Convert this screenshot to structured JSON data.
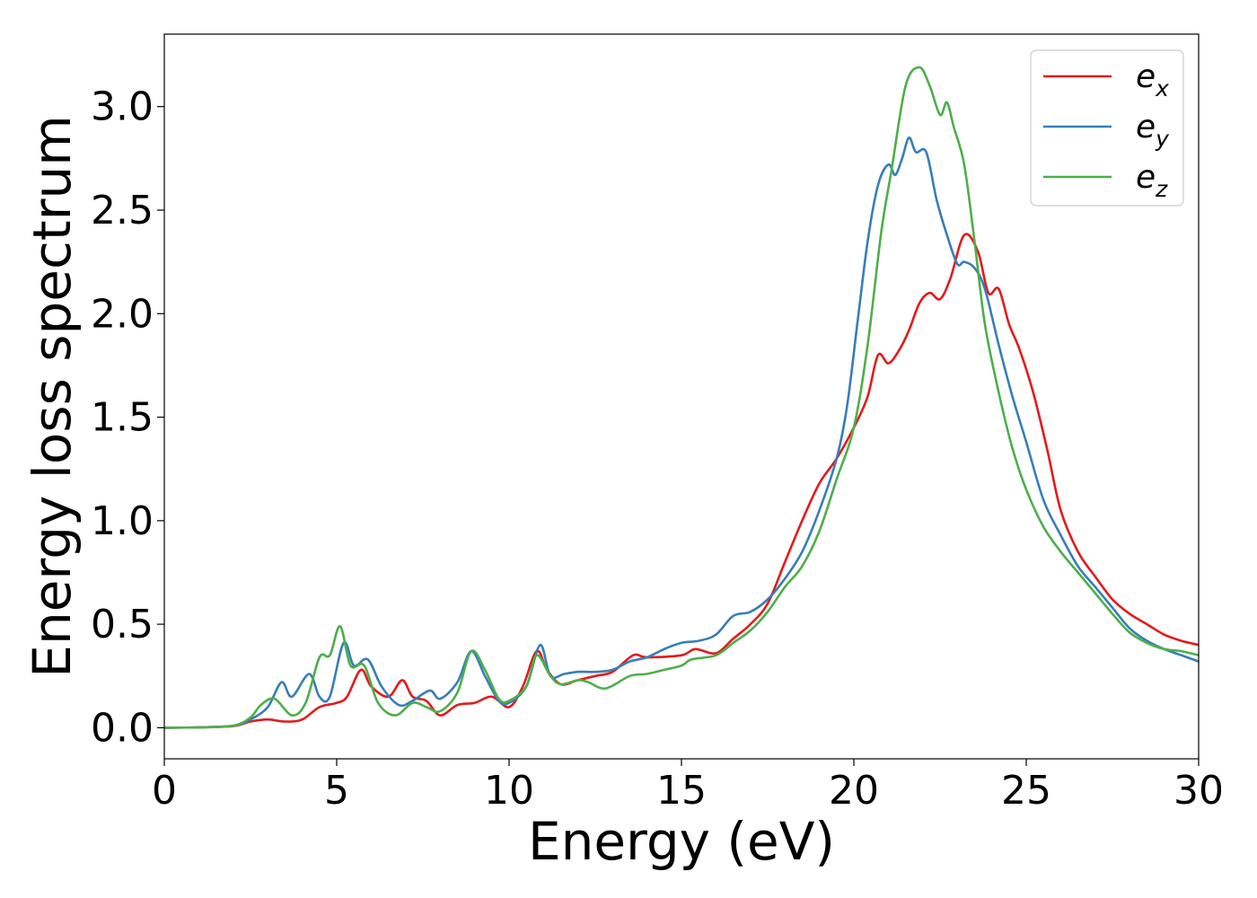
{
  "chart_data": {
    "type": "line",
    "title": "",
    "xlabel": "Energy (eV)",
    "ylabel": "Energy loss spectrum",
    "xlim": [
      0,
      30
    ],
    "ylim": [
      -0.15,
      3.35
    ],
    "xticks": [
      0,
      5,
      10,
      15,
      20,
      25,
      30
    ],
    "xtick_labels": [
      "0",
      "5",
      "10",
      "15",
      "20",
      "25",
      "30"
    ],
    "yticks": [
      0.0,
      0.5,
      1.0,
      1.5,
      2.0,
      2.5,
      3.0
    ],
    "ytick_labels": [
      "0.0",
      "0.5",
      "1.0",
      "1.5",
      "2.0",
      "2.5",
      "3.0"
    ],
    "grid": false,
    "legend_position": "top-right",
    "series": [
      {
        "name": "e",
        "subscript": "x",
        "color": "#e41a1c",
        "points": [
          [
            0,
            0
          ],
          [
            1,
            0.002
          ],
          [
            2,
            0.008
          ],
          [
            2.5,
            0.03
          ],
          [
            3,
            0.04
          ],
          [
            3.5,
            0.03
          ],
          [
            4,
            0.04
          ],
          [
            4.5,
            0.1
          ],
          [
            5,
            0.12
          ],
          [
            5.3,
            0.15
          ],
          [
            5.7,
            0.28
          ],
          [
            6,
            0.2
          ],
          [
            6.5,
            0.15
          ],
          [
            6.9,
            0.23
          ],
          [
            7.2,
            0.15
          ],
          [
            7.6,
            0.13
          ],
          [
            8,
            0.06
          ],
          [
            8.5,
            0.11
          ],
          [
            9,
            0.12
          ],
          [
            9.5,
            0.15
          ],
          [
            10,
            0.1
          ],
          [
            10.4,
            0.2
          ],
          [
            10.8,
            0.37
          ],
          [
            11.1,
            0.28
          ],
          [
            11.5,
            0.21
          ],
          [
            12,
            0.23
          ],
          [
            12.5,
            0.25
          ],
          [
            13,
            0.27
          ],
          [
            13.6,
            0.35
          ],
          [
            14,
            0.34
          ],
          [
            15,
            0.35
          ],
          [
            15.4,
            0.38
          ],
          [
            16,
            0.36
          ],
          [
            16.5,
            0.43
          ],
          [
            17,
            0.5
          ],
          [
            17.5,
            0.6
          ],
          [
            18,
            0.8
          ],
          [
            18.5,
            1.0
          ],
          [
            19,
            1.18
          ],
          [
            19.5,
            1.3
          ],
          [
            20,
            1.45
          ],
          [
            20.4,
            1.6
          ],
          [
            20.7,
            1.8
          ],
          [
            21,
            1.76
          ],
          [
            21.3,
            1.82
          ],
          [
            21.6,
            1.92
          ],
          [
            21.9,
            2.05
          ],
          [
            22.2,
            2.1
          ],
          [
            22.5,
            2.07
          ],
          [
            22.8,
            2.17
          ],
          [
            23.2,
            2.38
          ],
          [
            23.6,
            2.3
          ],
          [
            23.9,
            2.1
          ],
          [
            24.2,
            2.12
          ],
          [
            24.5,
            1.95
          ],
          [
            24.8,
            1.83
          ],
          [
            25.2,
            1.62
          ],
          [
            25.6,
            1.35
          ],
          [
            26,
            1.05
          ],
          [
            26.5,
            0.85
          ],
          [
            27,
            0.73
          ],
          [
            27.5,
            0.62
          ],
          [
            28,
            0.55
          ],
          [
            28.5,
            0.5
          ],
          [
            29,
            0.45
          ],
          [
            29.5,
            0.42
          ],
          [
            30,
            0.4
          ]
        ]
      },
      {
        "name": "e",
        "subscript": "y",
        "color": "#377eb8",
        "points": [
          [
            0,
            0
          ],
          [
            1,
            0.002
          ],
          [
            2,
            0.01
          ],
          [
            2.5,
            0.04
          ],
          [
            3,
            0.1
          ],
          [
            3.4,
            0.22
          ],
          [
            3.7,
            0.15
          ],
          [
            4.2,
            0.26
          ],
          [
            4.5,
            0.15
          ],
          [
            4.8,
            0.15
          ],
          [
            5.2,
            0.41
          ],
          [
            5.5,
            0.3
          ],
          [
            5.9,
            0.33
          ],
          [
            6.3,
            0.2
          ],
          [
            6.8,
            0.11
          ],
          [
            7.2,
            0.13
          ],
          [
            7.7,
            0.18
          ],
          [
            8,
            0.14
          ],
          [
            8.5,
            0.22
          ],
          [
            8.9,
            0.37
          ],
          [
            9.3,
            0.25
          ],
          [
            9.7,
            0.13
          ],
          [
            10,
            0.12
          ],
          [
            10.5,
            0.2
          ],
          [
            10.9,
            0.4
          ],
          [
            11.2,
            0.25
          ],
          [
            11.6,
            0.26
          ],
          [
            12,
            0.27
          ],
          [
            12.5,
            0.27
          ],
          [
            13,
            0.28
          ],
          [
            13.5,
            0.32
          ],
          [
            14,
            0.34
          ],
          [
            14.5,
            0.38
          ],
          [
            15,
            0.41
          ],
          [
            15.5,
            0.42
          ],
          [
            16,
            0.45
          ],
          [
            16.5,
            0.54
          ],
          [
            17,
            0.56
          ],
          [
            17.5,
            0.62
          ],
          [
            18,
            0.72
          ],
          [
            18.5,
            0.85
          ],
          [
            19,
            1.05
          ],
          [
            19.5,
            1.3
          ],
          [
            19.8,
            1.55
          ],
          [
            20.1,
            1.95
          ],
          [
            20.4,
            2.35
          ],
          [
            20.7,
            2.62
          ],
          [
            21,
            2.72
          ],
          [
            21.2,
            2.67
          ],
          [
            21.4,
            2.75
          ],
          [
            21.6,
            2.85
          ],
          [
            21.8,
            2.78
          ],
          [
            22.1,
            2.78
          ],
          [
            22.4,
            2.55
          ],
          [
            22.7,
            2.38
          ],
          [
            23,
            2.24
          ],
          [
            23.2,
            2.25
          ],
          [
            23.5,
            2.22
          ],
          [
            23.8,
            2.12
          ],
          [
            24.2,
            1.85
          ],
          [
            24.6,
            1.6
          ],
          [
            25,
            1.38
          ],
          [
            25.5,
            1.1
          ],
          [
            26,
            0.93
          ],
          [
            26.5,
            0.78
          ],
          [
            27,
            0.68
          ],
          [
            27.5,
            0.58
          ],
          [
            28,
            0.48
          ],
          [
            28.5,
            0.42
          ],
          [
            29,
            0.38
          ],
          [
            29.5,
            0.35
          ],
          [
            30,
            0.32
          ]
        ]
      },
      {
        "name": "e",
        "subscript": "z",
        "color": "#4daf4a",
        "points": [
          [
            0,
            0
          ],
          [
            1,
            0.002
          ],
          [
            2,
            0.01
          ],
          [
            2.5,
            0.05
          ],
          [
            2.8,
            0.11
          ],
          [
            3.2,
            0.14
          ],
          [
            3.7,
            0.06
          ],
          [
            4.1,
            0.12
          ],
          [
            4.5,
            0.34
          ],
          [
            4.8,
            0.35
          ],
          [
            5.1,
            0.49
          ],
          [
            5.4,
            0.3
          ],
          [
            5.8,
            0.3
          ],
          [
            6.2,
            0.12
          ],
          [
            6.7,
            0.06
          ],
          [
            7.2,
            0.12
          ],
          [
            7.6,
            0.1
          ],
          [
            8,
            0.08
          ],
          [
            8.5,
            0.17
          ],
          [
            8.9,
            0.37
          ],
          [
            9.3,
            0.28
          ],
          [
            9.7,
            0.14
          ],
          [
            10,
            0.13
          ],
          [
            10.5,
            0.2
          ],
          [
            10.8,
            0.35
          ],
          [
            11.2,
            0.25
          ],
          [
            11.5,
            0.21
          ],
          [
            12,
            0.23
          ],
          [
            12.3,
            0.22
          ],
          [
            12.8,
            0.19
          ],
          [
            13.5,
            0.25
          ],
          [
            14,
            0.26
          ],
          [
            14.5,
            0.28
          ],
          [
            15,
            0.3
          ],
          [
            15.3,
            0.33
          ],
          [
            16,
            0.35
          ],
          [
            16.5,
            0.41
          ],
          [
            17,
            0.47
          ],
          [
            17.5,
            0.56
          ],
          [
            18,
            0.68
          ],
          [
            18.5,
            0.78
          ],
          [
            19,
            0.95
          ],
          [
            19.5,
            1.2
          ],
          [
            20,
            1.45
          ],
          [
            20.4,
            1.85
          ],
          [
            20.8,
            2.4
          ],
          [
            21.1,
            2.7
          ],
          [
            21.5,
            3.1
          ],
          [
            21.9,
            3.19
          ],
          [
            22.2,
            3.1
          ],
          [
            22.5,
            2.96
          ],
          [
            22.7,
            3.02
          ],
          [
            22.9,
            2.9
          ],
          [
            23.2,
            2.72
          ],
          [
            23.5,
            2.35
          ],
          [
            23.8,
            1.95
          ],
          [
            24.2,
            1.62
          ],
          [
            24.6,
            1.35
          ],
          [
            25,
            1.15
          ],
          [
            25.5,
            0.97
          ],
          [
            26,
            0.85
          ],
          [
            26.5,
            0.75
          ],
          [
            27,
            0.65
          ],
          [
            27.5,
            0.55
          ],
          [
            28,
            0.46
          ],
          [
            28.5,
            0.41
          ],
          [
            29,
            0.38
          ],
          [
            29.5,
            0.37
          ],
          [
            30,
            0.35
          ]
        ]
      }
    ]
  }
}
